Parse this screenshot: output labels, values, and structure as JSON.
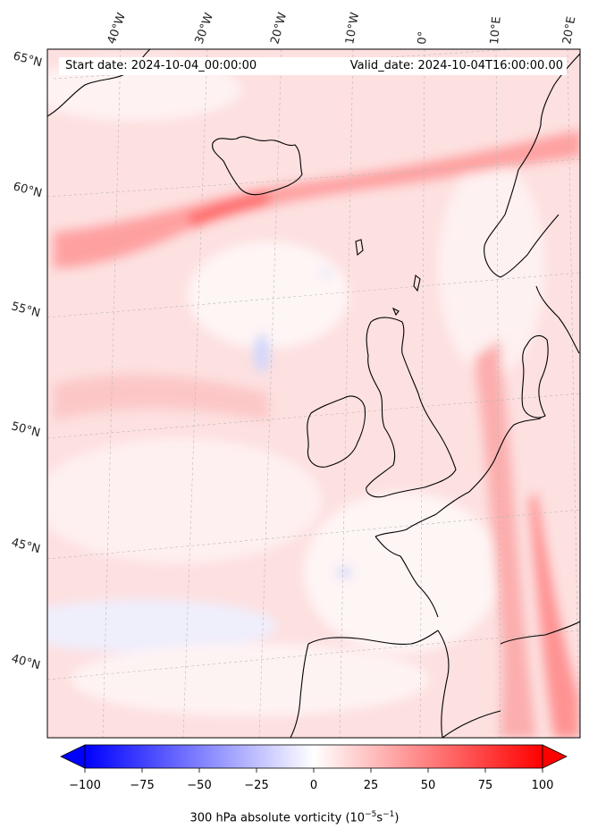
{
  "titles": {
    "start": "Start date: 2024-10-04_00:00:00",
    "valid": "Valid_date: 2024-10-04T16:00:00.00"
  },
  "lon_labels": [
    "40°W",
    "30°W",
    "20°W",
    "10°W",
    "0°",
    "10°E",
    "20°E"
  ],
  "lat_labels": [
    "65°N",
    "60°N",
    "55°N",
    "50°N",
    "45°N",
    "40°N"
  ],
  "colorbar": {
    "label_prefix": "300 hPa absolute vorticity (10",
    "exp1": "−5",
    "mid": "s",
    "exp2": "−1",
    "label_suffix": ")",
    "min": -100,
    "max": 100,
    "tick_values": [
      -100,
      -75,
      -50,
      -25,
      0,
      25,
      50,
      75,
      100
    ],
    "tick_labels": [
      "−100",
      "−75",
      "−50",
      "−25",
      "0",
      "25",
      "50",
      "75",
      "100"
    ],
    "colormap": "bwr",
    "extend": "both"
  },
  "colors": {
    "negative": "#0000ff",
    "positive": "#ff0000",
    "coast": "#000000"
  }
}
